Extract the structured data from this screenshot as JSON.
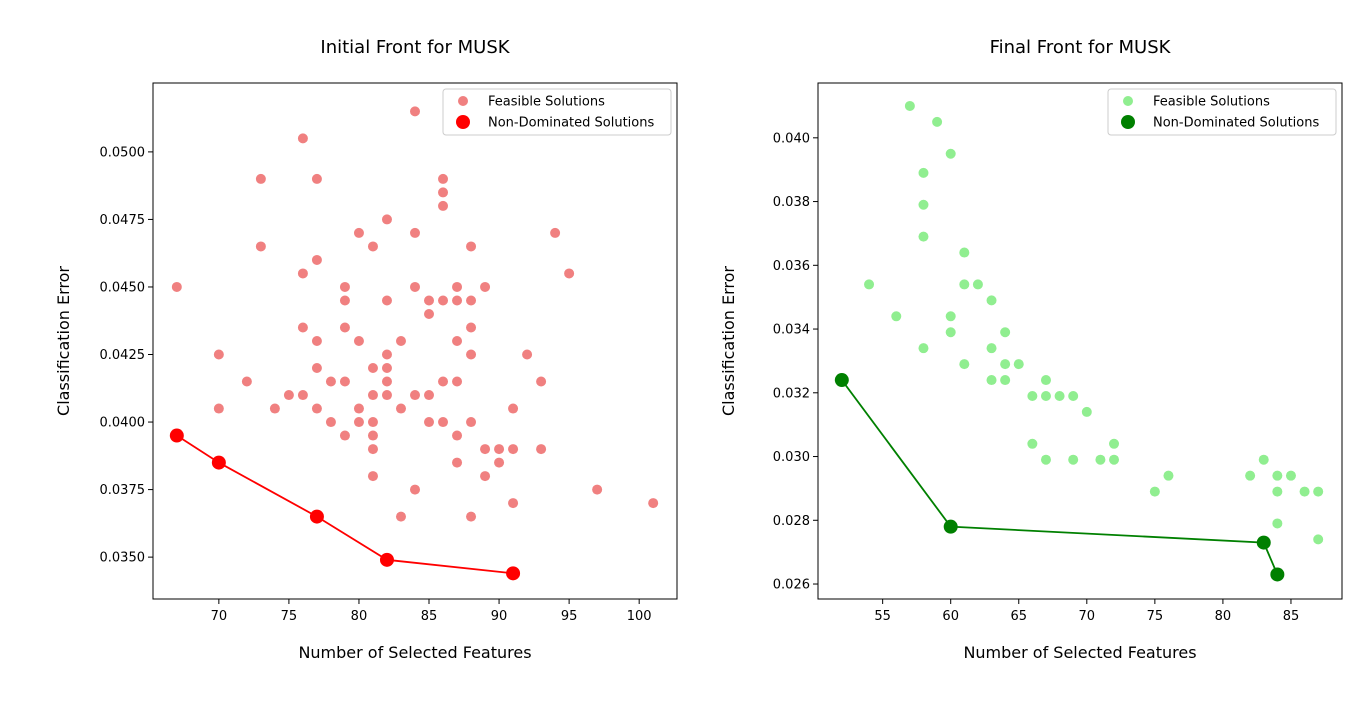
{
  "chart_data": [
    {
      "type": "scatter",
      "title": "Initial Front for MUSK",
      "xlabel": "Number of Selected Features",
      "ylabel": "Classification Error",
      "xlim": [
        65.3,
        102.7
      ],
      "ylim": [
        0.03345,
        0.05255
      ],
      "xticks": [
        70,
        75,
        80,
        85,
        90,
        95,
        100
      ],
      "xtick_labels": [
        "70",
        "75",
        "80",
        "85",
        "90",
        "95",
        "100"
      ],
      "yticks": [
        0.035,
        0.0375,
        0.04,
        0.0425,
        0.045,
        0.0475,
        0.05
      ],
      "ytick_labels": [
        "0.0350",
        "0.0375",
        "0.0400",
        "0.0425",
        "0.0450",
        "0.0475",
        "0.0500"
      ],
      "legend_position": "top-right",
      "grid": false,
      "series": [
        {
          "name": "Feasible Solutions",
          "color": "#f08080",
          "points": [
            [
              67,
              0.045
            ],
            [
              70,
              0.0425
            ],
            [
              70,
              0.0405
            ],
            [
              72,
              0.0415
            ],
            [
              73,
              0.049
            ],
            [
              73,
              0.0465
            ],
            [
              74,
              0.0405
            ],
            [
              75,
              0.041
            ],
            [
              76,
              0.0505
            ],
            [
              76,
              0.0455
            ],
            [
              76,
              0.0435
            ],
            [
              76,
              0.041
            ],
            [
              77,
              0.049
            ],
            [
              77,
              0.046
            ],
            [
              77,
              0.043
            ],
            [
              77,
              0.042
            ],
            [
              77,
              0.0405
            ],
            [
              78,
              0.0415
            ],
            [
              78,
              0.04
            ],
            [
              79,
              0.045
            ],
            [
              79,
              0.0445
            ],
            [
              79,
              0.0435
            ],
            [
              79,
              0.0415
            ],
            [
              79,
              0.0395
            ],
            [
              80,
              0.047
            ],
            [
              80,
              0.043
            ],
            [
              80,
              0.0405
            ],
            [
              80,
              0.04
            ],
            [
              81,
              0.0465
            ],
            [
              81,
              0.042
            ],
            [
              81,
              0.041
            ],
            [
              81,
              0.04
            ],
            [
              81,
              0.0395
            ],
            [
              81,
              0.039
            ],
            [
              81,
              0.038
            ],
            [
              82,
              0.0475
            ],
            [
              82,
              0.0445
            ],
            [
              82,
              0.0425
            ],
            [
              82,
              0.042
            ],
            [
              82,
              0.0415
            ],
            [
              82,
              0.041
            ],
            [
              83,
              0.043
            ],
            [
              83,
              0.0405
            ],
            [
              83,
              0.0365
            ],
            [
              84,
              0.0515
            ],
            [
              84,
              0.047
            ],
            [
              84,
              0.045
            ],
            [
              84,
              0.041
            ],
            [
              84,
              0.0375
            ],
            [
              85,
              0.0445
            ],
            [
              85,
              0.044
            ],
            [
              85,
              0.041
            ],
            [
              85,
              0.04
            ],
            [
              86,
              0.049
            ],
            [
              86,
              0.0485
            ],
            [
              86,
              0.048
            ],
            [
              86,
              0.0445
            ],
            [
              86,
              0.0415
            ],
            [
              86,
              0.04
            ],
            [
              87,
              0.045
            ],
            [
              87,
              0.0445
            ],
            [
              87,
              0.043
            ],
            [
              87,
              0.0415
            ],
            [
              87,
              0.0395
            ],
            [
              87,
              0.0385
            ],
            [
              88,
              0.0465
            ],
            [
              88,
              0.0445
            ],
            [
              88,
              0.0435
            ],
            [
              88,
              0.0425
            ],
            [
              88,
              0.04
            ],
            [
              88,
              0.0365
            ],
            [
              89,
              0.045
            ],
            [
              89,
              0.039
            ],
            [
              89,
              0.038
            ],
            [
              90,
              0.039
            ],
            [
              90,
              0.0385
            ],
            [
              91,
              0.0405
            ],
            [
              91,
              0.039
            ],
            [
              91,
              0.037
            ],
            [
              92,
              0.0425
            ],
            [
              93,
              0.0415
            ],
            [
              93,
              0.039
            ],
            [
              94,
              0.047
            ],
            [
              95,
              0.0455
            ],
            [
              97,
              0.0375
            ],
            [
              101,
              0.037
            ]
          ]
        },
        {
          "name": "Non-Dominated Solutions",
          "color": "#ff0000",
          "connected": true,
          "points": [
            [
              67,
              0.0395
            ],
            [
              70,
              0.0385
            ],
            [
              77,
              0.0365
            ],
            [
              82,
              0.0349
            ],
            [
              91,
              0.0344
            ]
          ]
        }
      ]
    },
    {
      "type": "scatter",
      "title": "Final Front for MUSK",
      "xlabel": "Number of Selected Features",
      "ylabel": "Classification Error",
      "xlim": [
        50.25,
        88.75
      ],
      "ylim": [
        0.02553,
        0.04172
      ],
      "xticks": [
        55,
        60,
        65,
        70,
        75,
        80,
        85
      ],
      "xtick_labels": [
        "55",
        "60",
        "65",
        "70",
        "75",
        "80",
        "85"
      ],
      "yticks": [
        0.026,
        0.028,
        0.03,
        0.032,
        0.034,
        0.036,
        0.038,
        0.04
      ],
      "ytick_labels": [
        "0.026",
        "0.028",
        "0.030",
        "0.032",
        "0.034",
        "0.036",
        "0.038",
        "0.040"
      ],
      "legend_position": "top-right",
      "grid": false,
      "series": [
        {
          "name": "Feasible Solutions",
          "color": "#90ee90",
          "points": [
            [
              54,
              0.0354
            ],
            [
              56,
              0.0344
            ],
            [
              57,
              0.041
            ],
            [
              58,
              0.0389
            ],
            [
              58,
              0.0379
            ],
            [
              58,
              0.0369
            ],
            [
              58,
              0.0334
            ],
            [
              59,
              0.0405
            ],
            [
              60,
              0.0395
            ],
            [
              60,
              0.0344
            ],
            [
              60,
              0.0339
            ],
            [
              61,
              0.0364
            ],
            [
              61,
              0.0354
            ],
            [
              61,
              0.0329
            ],
            [
              62,
              0.0354
            ],
            [
              63,
              0.0349
            ],
            [
              63,
              0.0334
            ],
            [
              63,
              0.0324
            ],
            [
              64,
              0.0339
            ],
            [
              64,
              0.0329
            ],
            [
              64,
              0.0324
            ],
            [
              65,
              0.0329
            ],
            [
              66,
              0.0319
            ],
            [
              66,
              0.0304
            ],
            [
              67,
              0.0324
            ],
            [
              67,
              0.0319
            ],
            [
              67,
              0.0299
            ],
            [
              68,
              0.0319
            ],
            [
              69,
              0.0319
            ],
            [
              69,
              0.0299
            ],
            [
              70,
              0.0314
            ],
            [
              71,
              0.0299
            ],
            [
              72,
              0.0304
            ],
            [
              72,
              0.0299
            ],
            [
              75,
              0.0289
            ],
            [
              76,
              0.0294
            ],
            [
              82,
              0.0294
            ],
            [
              83,
              0.0299
            ],
            [
              84,
              0.0294
            ],
            [
              84,
              0.0289
            ],
            [
              84,
              0.0279
            ],
            [
              85,
              0.0294
            ],
            [
              86,
              0.0289
            ],
            [
              87,
              0.0289
            ],
            [
              87,
              0.0274
            ]
          ]
        },
        {
          "name": "Non-Dominated Solutions",
          "color": "#008000",
          "connected": true,
          "points": [
            [
              52,
              0.0324
            ],
            [
              60,
              0.0278
            ],
            [
              83,
              0.0273
            ],
            [
              84,
              0.0263
            ]
          ]
        }
      ]
    }
  ]
}
